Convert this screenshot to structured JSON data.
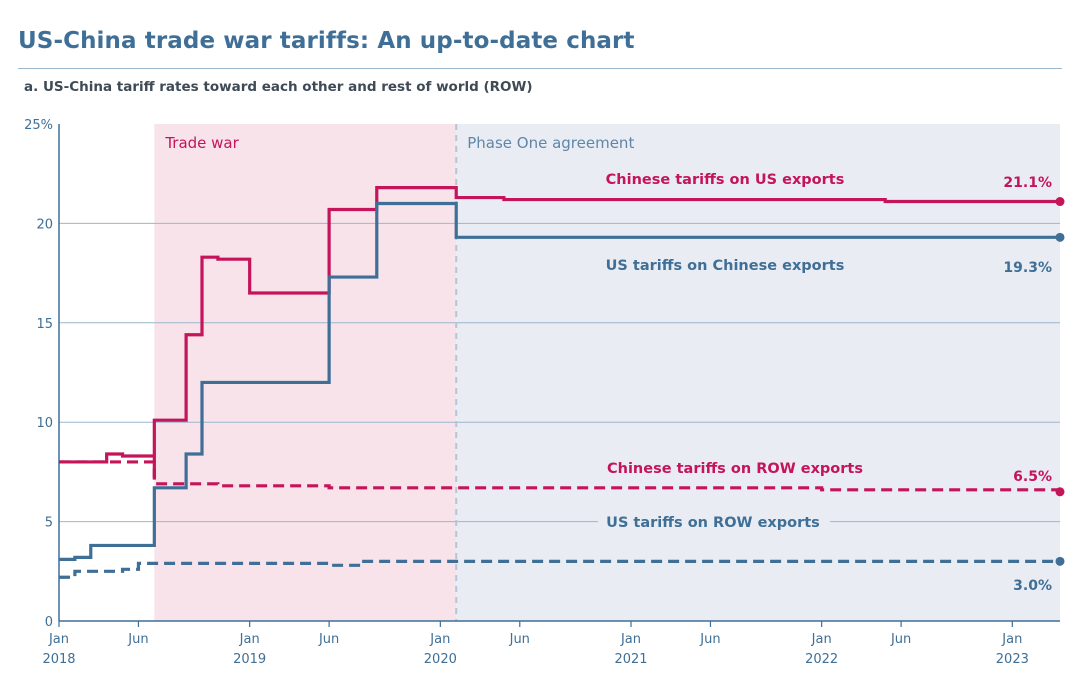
{
  "header": {
    "title": "US-China trade war tariffs: An up-to-date chart",
    "subtitle": "a. US-China tariff rates toward each other and rest of world (ROW)"
  },
  "colors": {
    "china": "#c4145a",
    "us": "#3f6f96",
    "trade_war_band": "#f8e3eb",
    "phase_one_band": "#e9edf3",
    "grid": "#9ab6cc"
  },
  "chart_data": {
    "type": "line",
    "title": "a. US-China tariff rates toward each other and rest of world (ROW)",
    "ylim": [
      0,
      25
    ],
    "yticks": [
      {
        "value": 0,
        "label": "0"
      },
      {
        "value": 5,
        "label": "5"
      },
      {
        "value": 10,
        "label": "10"
      },
      {
        "value": 15,
        "label": "15"
      },
      {
        "value": 20,
        "label": "20"
      },
      {
        "value": 25,
        "label": "25%"
      }
    ],
    "xlim": [
      "2018-01",
      "2023-04"
    ],
    "xticks": [
      {
        "x": "2018-01",
        "line1": "Jan",
        "line2": "2018"
      },
      {
        "x": "2018-06",
        "line1": "Jun",
        "line2": ""
      },
      {
        "x": "2019-01",
        "line1": "Jan",
        "line2": "2019"
      },
      {
        "x": "2019-06",
        "line1": "Jun",
        "line2": ""
      },
      {
        "x": "2020-01",
        "line1": "Jan",
        "line2": "2020"
      },
      {
        "x": "2020-06",
        "line1": "Jun",
        "line2": ""
      },
      {
        "x": "2021-01",
        "line1": "Jan",
        "line2": "2021"
      },
      {
        "x": "2021-06",
        "line1": "Jun",
        "line2": ""
      },
      {
        "x": "2022-01",
        "line1": "Jan",
        "line2": "2022"
      },
      {
        "x": "2022-06",
        "line1": "Jun",
        "line2": ""
      },
      {
        "x": "2023-01",
        "line1": "Jan",
        "line2": "2023"
      }
    ],
    "periods": [
      {
        "label": "Trade war",
        "start": "2018-07",
        "end": "2020-02",
        "color": "#c4145a"
      },
      {
        "label": "Phase One agreement",
        "start": "2020-02",
        "end": "2023-04",
        "color": "#5f86a8"
      }
    ],
    "series": [
      {
        "name": "Chinese tariffs on US exports",
        "color": "#c4145a",
        "dash": false,
        "end_label": "21.1%",
        "points": [
          [
            "2018-01",
            8.0
          ],
          [
            "2018-04",
            8.4
          ],
          [
            "2018-05",
            8.3
          ],
          [
            "2018-07",
            7.2
          ],
          [
            "2018-07",
            10.1
          ],
          [
            "2018-09",
            14.4
          ],
          [
            "2018-10",
            18.3
          ],
          [
            "2018-11",
            18.2
          ],
          [
            "2019-01",
            16.5
          ],
          [
            "2019-06",
            20.7
          ],
          [
            "2019-09",
            21.8
          ],
          [
            "2020-02",
            21.3
          ],
          [
            "2020-05",
            21.2
          ],
          [
            "2022-05",
            21.1
          ],
          [
            "2023-04",
            21.1
          ]
        ]
      },
      {
        "name": "US tariffs on Chinese exports",
        "color": "#3f6f96",
        "dash": false,
        "end_label": "19.3%",
        "points": [
          [
            "2018-01",
            3.1
          ],
          [
            "2018-02",
            3.2
          ],
          [
            "2018-03",
            3.8
          ],
          [
            "2018-07",
            6.7
          ],
          [
            "2018-09",
            8.4
          ],
          [
            "2018-10",
            12.0
          ],
          [
            "2019-06",
            17.3
          ],
          [
            "2019-09",
            21.0
          ],
          [
            "2020-02",
            19.3
          ],
          [
            "2023-04",
            19.3
          ]
        ]
      },
      {
        "name": "Chinese tariffs on ROW exports",
        "color": "#c4145a",
        "dash": true,
        "end_label": "6.5%",
        "points": [
          [
            "2018-01",
            8.0
          ],
          [
            "2018-07",
            6.9
          ],
          [
            "2018-11",
            6.8
          ],
          [
            "2019-06",
            6.7
          ],
          [
            "2022-01",
            6.6
          ],
          [
            "2023-04",
            6.5
          ]
        ]
      },
      {
        "name": "US tariffs on ROW exports",
        "color": "#3f6f96",
        "dash": true,
        "end_label": "3.0%",
        "points": [
          [
            "2018-01",
            2.2
          ],
          [
            "2018-02",
            2.5
          ],
          [
            "2018-05",
            2.6
          ],
          [
            "2018-06",
            2.9
          ],
          [
            "2019-06",
            2.8
          ],
          [
            "2019-08",
            3.0
          ],
          [
            "2023-04",
            3.0
          ]
        ]
      }
    ]
  }
}
